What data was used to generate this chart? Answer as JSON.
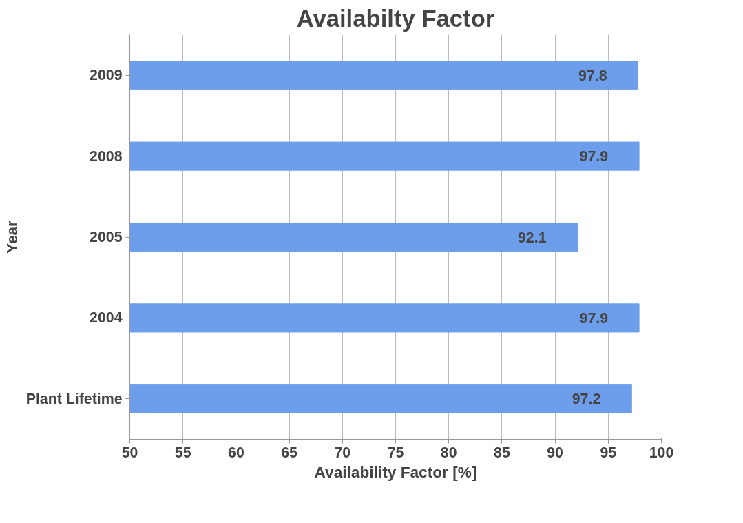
{
  "chart_data": {
    "type": "bar",
    "orientation": "horizontal",
    "title": "Availabilty Factor",
    "xlabel": "Availability Factor [%]",
    "ylabel": "Year",
    "categories": [
      "2009",
      "2008",
      "2005",
      "2004",
      "Plant Lifetime"
    ],
    "values": [
      97.8,
      97.9,
      92.1,
      97.9,
      97.2
    ],
    "color": "#6d9eeb",
    "data_labels": true,
    "xlim": [
      50,
      100
    ],
    "xticks": [
      50,
      55,
      60,
      65,
      70,
      75,
      80,
      85,
      90,
      95,
      100
    ],
    "grid": "x"
  }
}
